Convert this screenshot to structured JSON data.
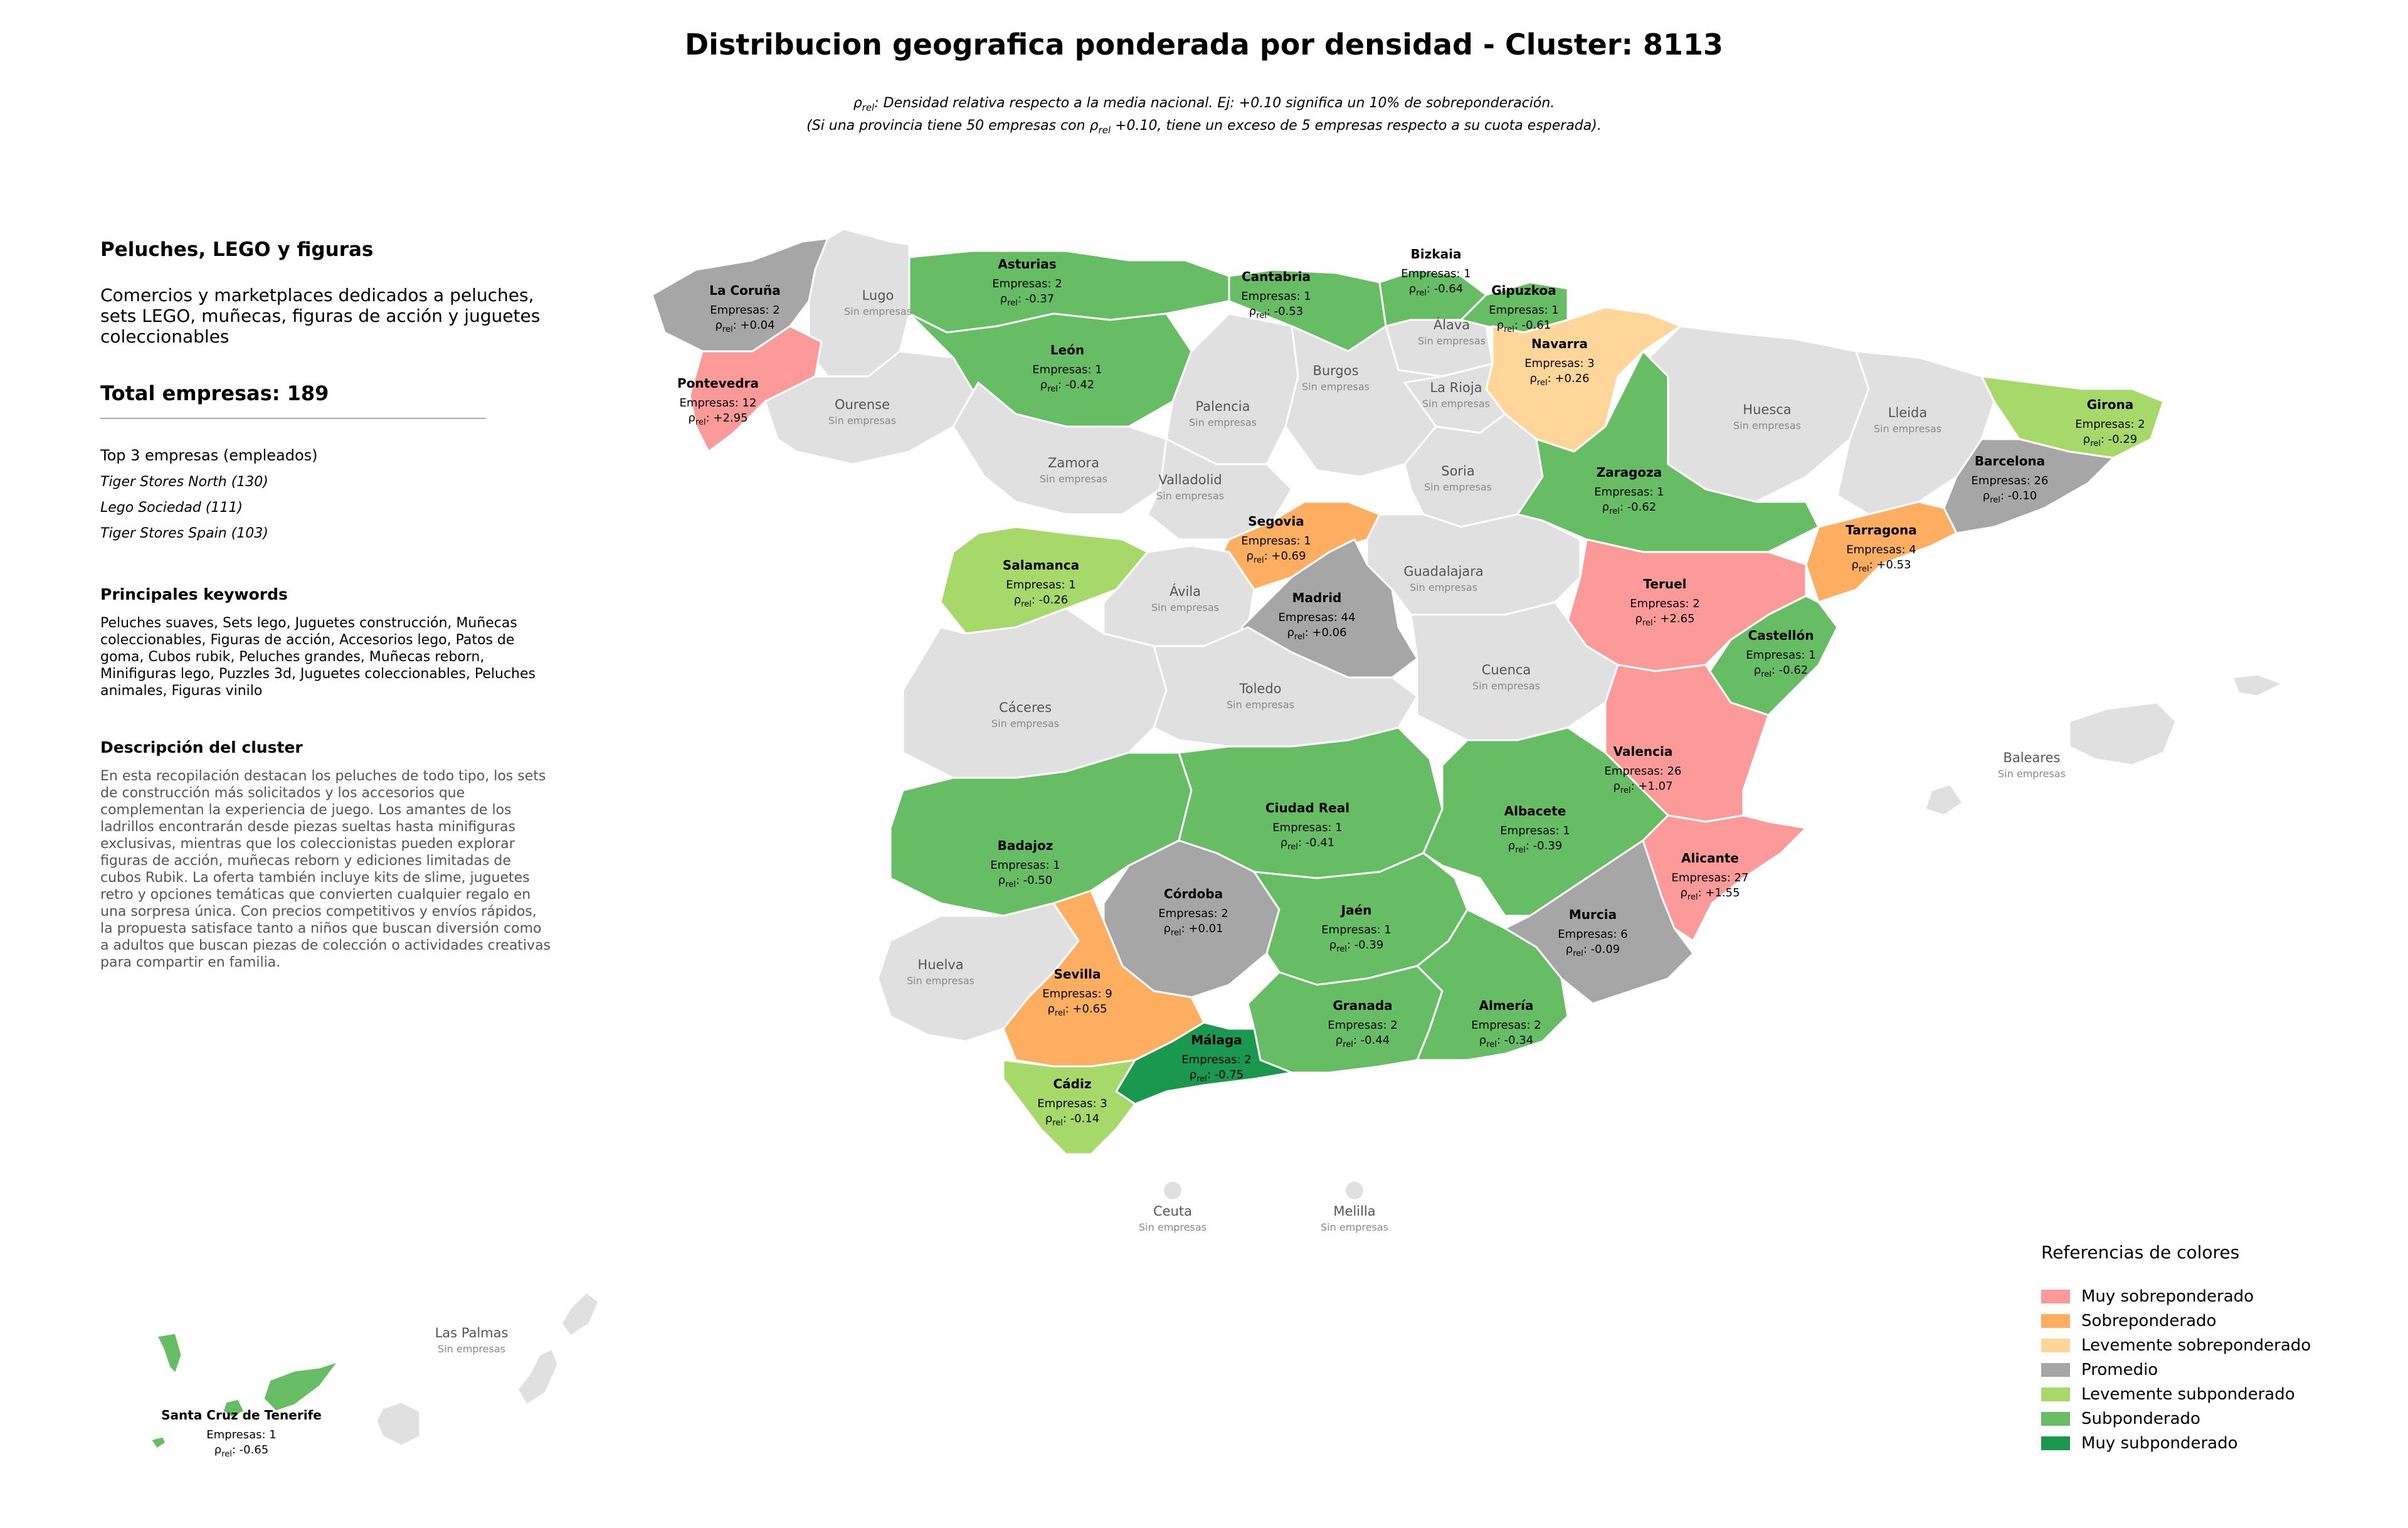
{
  "title": "Distribucion geografica ponderada por densidad - Cluster: 8113",
  "note_line1": "ρrel: Densidad relativa respecto a la media nacional. Ej: +0.10 significa un 10% de sobreponderación.",
  "note_line2": "(Si una provincia tiene 50 empresas con ρrel +0.10, tiene un exceso de 5 empresas respecto a su cuota esperada).",
  "panel": {
    "cluster_name": "Peluches, LEGO y figuras",
    "cluster_desc": "Comercios y marketplaces dedicados a peluches, sets LEGO, muñecas, figuras de acción y juguetes coleccionables",
    "total": "Total empresas: 189",
    "top3_title": "Top 3 empresas (empleados)",
    "top3": [
      "Tiger Stores North (130)",
      "Lego Sociedad (111)",
      "Tiger Stores Spain (103)"
    ],
    "keywords_title": "Principales keywords",
    "keywords": "Peluches suaves, Sets lego, Juguetes construcción, Muñecas coleccionables, Figuras de acción, Accesorios lego, Patos de goma, Cubos rubik, Peluches grandes, Muñecas reborn, Minifiguras lego, Puzzles 3d, Juguetes coleccionables, Peluches animales, Figuras vinilo",
    "desc_title": "Descripción del cluster",
    "desc": "En esta recopilación destacan los peluches de todo tipo, los sets de construcción más solicitados y los accesorios que complementan la experiencia de juego. Los amantes de los ladrillos encontrarán desde piezas sueltas hasta minifiguras exclusivas, mientras que los coleccionistas pueden explorar figuras de acción, muñecas reborn y ediciones limitadas de cubos Rubik. La oferta también incluye kits de slime, juguetes retro y opciones temáticas que convierten cualquier regalo en una sorpresa única. Con precios competitivos y envíos rápidos, la propuesta satisface tanto a niños que buscan diversión como a adultos que buscan piezas de colección o actividades creativas para compartir en familia."
  },
  "colors": {
    "muy_sobre": "#fb9a99",
    "sobre": "#fdae61",
    "lev_sobre": "#fed69a",
    "promedio": "#a6a6a6",
    "lev_sub": "#a6d96a",
    "sub": "#66bd63",
    "muy_sub": "#1a9850",
    "sin": "#e0e0e0"
  },
  "empty_label": "Sin empresas",
  "provinces": [
    {
      "name": "La Coruña",
      "empresas": 2,
      "rho": "+0.04",
      "cat": "promedio"
    },
    {
      "name": "Lugo",
      "empresas": 0,
      "cat": "sin"
    },
    {
      "name": "Asturias",
      "empresas": 2,
      "rho": "-0.37",
      "cat": "sub"
    },
    {
      "name": "Cantabria",
      "empresas": 1,
      "rho": "-0.53",
      "cat": "sub"
    },
    {
      "name": "Bizkaia",
      "empresas": 1,
      "rho": "-0.64",
      "cat": "sub"
    },
    {
      "name": "Gipuzkoa",
      "empresas": 1,
      "rho": "-0.61",
      "cat": "sub"
    },
    {
      "name": "Álava",
      "empresas": 0,
      "cat": "sin"
    },
    {
      "name": "Navarra",
      "empresas": 3,
      "rho": "+0.26",
      "cat": "lev_sobre"
    },
    {
      "name": "Pontevedra",
      "empresas": 12,
      "rho": "+2.95",
      "cat": "muy_sobre"
    },
    {
      "name": "Ourense",
      "empresas": 0,
      "cat": "sin"
    },
    {
      "name": "León",
      "empresas": 1,
      "rho": "-0.42",
      "cat": "sub"
    },
    {
      "name": "Palencia",
      "empresas": 0,
      "cat": "sin"
    },
    {
      "name": "Burgos",
      "empresas": 0,
      "cat": "sin"
    },
    {
      "name": "La Rioja",
      "empresas": 0,
      "cat": "sin"
    },
    {
      "name": "Huesca",
      "empresas": 0,
      "cat": "sin"
    },
    {
      "name": "Lleida",
      "empresas": 0,
      "cat": "sin"
    },
    {
      "name": "Girona",
      "empresas": 2,
      "rho": "-0.29",
      "cat": "lev_sub"
    },
    {
      "name": "Barcelona",
      "empresas": 26,
      "rho": "-0.10",
      "cat": "promedio"
    },
    {
      "name": "Zamora",
      "empresas": 0,
      "cat": "sin"
    },
    {
      "name": "Valladolid",
      "empresas": 0,
      "cat": "sin"
    },
    {
      "name": "Soria",
      "empresas": 0,
      "cat": "sin"
    },
    {
      "name": "Zaragoza",
      "empresas": 1,
      "rho": "-0.62",
      "cat": "sub"
    },
    {
      "name": "Tarragona",
      "empresas": 4,
      "rho": "+0.53",
      "cat": "sobre"
    },
    {
      "name": "Salamanca",
      "empresas": 1,
      "rho": "-0.26",
      "cat": "lev_sub"
    },
    {
      "name": "Segovia",
      "empresas": 1,
      "rho": "+0.69",
      "cat": "sobre"
    },
    {
      "name": "Ávila",
      "empresas": 0,
      "cat": "sin"
    },
    {
      "name": "Madrid",
      "empresas": 44,
      "rho": "+0.06",
      "cat": "promedio"
    },
    {
      "name": "Guadalajara",
      "empresas": 0,
      "cat": "sin"
    },
    {
      "name": "Teruel",
      "empresas": 2,
      "rho": "+2.65",
      "cat": "muy_sobre"
    },
    {
      "name": "Castellón",
      "empresas": 1,
      "rho": "-0.62",
      "cat": "sub"
    },
    {
      "name": "Cáceres",
      "empresas": 0,
      "cat": "sin"
    },
    {
      "name": "Toledo",
      "empresas": 0,
      "cat": "sin"
    },
    {
      "name": "Cuenca",
      "empresas": 0,
      "cat": "sin"
    },
    {
      "name": "Valencia",
      "empresas": 26,
      "rho": "+1.07",
      "cat": "muy_sobre"
    },
    {
      "name": "Baleares",
      "empresas": 0,
      "cat": "sin"
    },
    {
      "name": "Badajoz",
      "empresas": 1,
      "rho": "-0.50",
      "cat": "sub"
    },
    {
      "name": "Ciudad Real",
      "empresas": 1,
      "rho": "-0.41",
      "cat": "sub"
    },
    {
      "name": "Albacete",
      "empresas": 1,
      "rho": "-0.39",
      "cat": "sub"
    },
    {
      "name": "Alicante",
      "empresas": 27,
      "rho": "+1.55",
      "cat": "muy_sobre"
    },
    {
      "name": "Córdoba",
      "empresas": 2,
      "rho": "+0.01",
      "cat": "promedio"
    },
    {
      "name": "Jaén",
      "empresas": 1,
      "rho": "-0.39",
      "cat": "sub"
    },
    {
      "name": "Murcia",
      "empresas": 6,
      "rho": "-0.09",
      "cat": "promedio"
    },
    {
      "name": "Huelva",
      "empresas": 0,
      "cat": "sin"
    },
    {
      "name": "Sevilla",
      "empresas": 9,
      "rho": "+0.65",
      "cat": "sobre"
    },
    {
      "name": "Granada",
      "empresas": 2,
      "rho": "-0.44",
      "cat": "sub"
    },
    {
      "name": "Almería",
      "empresas": 2,
      "rho": "-0.34",
      "cat": "sub"
    },
    {
      "name": "Málaga",
      "empresas": 2,
      "rho": "-0.75",
      "cat": "muy_sub"
    },
    {
      "name": "Cádiz",
      "empresas": 3,
      "rho": "-0.14",
      "cat": "lev_sub"
    },
    {
      "name": "Ceuta",
      "empresas": 0,
      "cat": "sin"
    },
    {
      "name": "Melilla",
      "empresas": 0,
      "cat": "sin"
    },
    {
      "name": "Las Palmas",
      "empresas": 0,
      "cat": "sin"
    },
    {
      "name": "Santa Cruz de Tenerife",
      "empresas": 1,
      "rho": "-0.65",
      "cat": "sub"
    }
  ],
  "legend": {
    "title": "Referencias de colores",
    "items": [
      {
        "label": "Muy sobreponderado",
        "cat": "muy_sobre"
      },
      {
        "label": "Sobreponderado",
        "cat": "sobre"
      },
      {
        "label": "Levemente sobreponderado",
        "cat": "lev_sobre"
      },
      {
        "label": "Promedio",
        "cat": "promedio"
      },
      {
        "label": "Levemente subponderado",
        "cat": "lev_sub"
      },
      {
        "label": "Subponderado",
        "cat": "sub"
      },
      {
        "label": "Muy subponderado",
        "cat": "muy_sub"
      }
    ]
  }
}
